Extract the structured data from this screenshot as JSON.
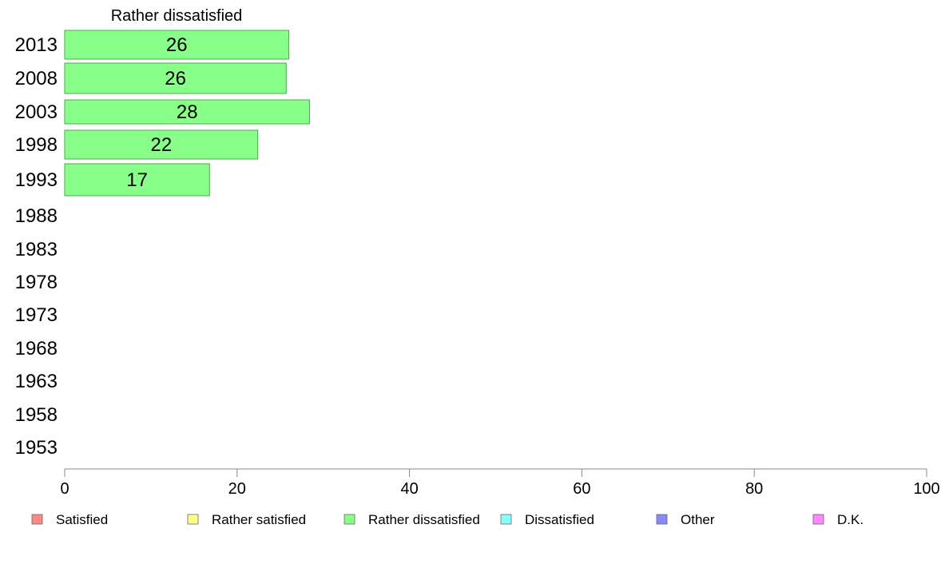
{
  "chart_data": {
    "type": "bar",
    "orientation": "horizontal",
    "panel_title": "Rather dissatisfied",
    "categories": [
      "2013",
      "2008",
      "2003",
      "1998",
      "1993",
      "1988",
      "1983",
      "1978",
      "1973",
      "1968",
      "1963",
      "1958",
      "1953"
    ],
    "series": [
      {
        "name": "Rather dissatisfied",
        "color": "#88ff88",
        "values": [
          26,
          25.7,
          28.4,
          22.4,
          16.8,
          null,
          null,
          null,
          null,
          null,
          null,
          null,
          null
        ],
        "labels": [
          "26",
          "26",
          "28",
          "22",
          "17",
          "",
          "",
          "",
          "",
          "",
          "",
          "",
          ""
        ]
      }
    ],
    "xlim": [
      0,
      100
    ],
    "xticks": [
      "0",
      "20",
      "40",
      "60",
      "80",
      "100"
    ],
    "grid": false,
    "legend": {
      "placement": "bottom",
      "items": [
        {
          "label": "Satisfied",
          "color": "#ff8888"
        },
        {
          "label": "Rather satisfied",
          "color": "#ffff88"
        },
        {
          "label": "Rather dissatisfied",
          "color": "#88ff88"
        },
        {
          "label": "Dissatisfied",
          "color": "#88ffff"
        },
        {
          "label": "Other",
          "color": "#8888ff"
        },
        {
          "label": "D.K.",
          "color": "#ff88ff"
        }
      ]
    }
  }
}
